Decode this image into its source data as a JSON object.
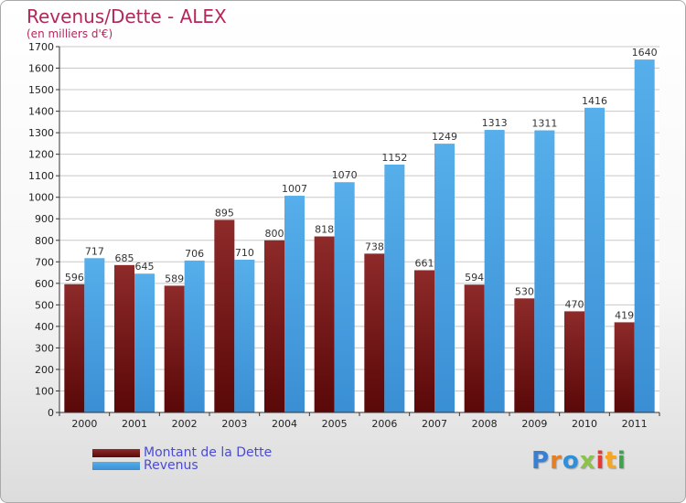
{
  "title": "Revenus/Dette - ALEX",
  "subtitle": "(en milliers d'€)",
  "logo_text": "Proxiti",
  "colors": {
    "dette": "#7a1a1a",
    "revenus": "#4ea6e6",
    "title": "#b5265a",
    "legend_text": "#4a4ad6"
  },
  "chart_data": {
    "type": "bar",
    "categories": [
      "2000",
      "2001",
      "2002",
      "2003",
      "2004",
      "2005",
      "2006",
      "2007",
      "2008",
      "2009",
      "2010",
      "2011"
    ],
    "series": [
      {
        "name": "Montant de la Dette",
        "values": [
          596,
          685,
          589,
          895,
          800,
          818,
          738,
          661,
          594,
          530,
          470,
          419
        ]
      },
      {
        "name": "Revenus",
        "values": [
          717,
          645,
          706,
          710,
          1007,
          1070,
          1152,
          1249,
          1313,
          1311,
          1416,
          1640
        ]
      }
    ],
    "ylim": [
      0,
      1700
    ],
    "yticks": [
      0,
      100,
      200,
      300,
      400,
      500,
      600,
      700,
      800,
      900,
      1000,
      1100,
      1200,
      1300,
      1400,
      1500,
      1600,
      1700
    ],
    "grid": true,
    "legend_position": "bottom-left"
  }
}
